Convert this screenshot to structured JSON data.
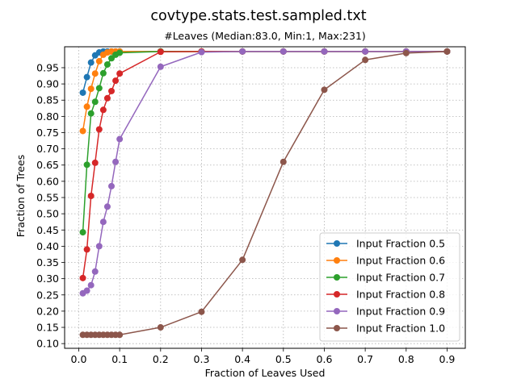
{
  "chart_data": {
    "type": "line",
    "title": "covtype.stats.test.sampled.txt",
    "subtitle": "#Leaves (Median:83.0, Min:1, Max:231)",
    "xlabel": "Fraction of Leaves Used",
    "ylabel": "Fraction of Trees",
    "xlim": [
      -0.0345,
      0.9445
    ],
    "ylim": [
      0.0855,
      1.0145
    ],
    "x_ticks": [
      0.0,
      0.1,
      0.2,
      0.3,
      0.4,
      0.5,
      0.6,
      0.7,
      0.8,
      0.9
    ],
    "x_tick_labels": [
      "0.0",
      "0.1",
      "0.2",
      "0.3",
      "0.4",
      "0.5",
      "0.6",
      "0.7",
      "0.8",
      "0.9"
    ],
    "y_ticks": [
      0.1,
      0.15,
      0.2,
      0.25,
      0.3,
      0.35,
      0.4,
      0.45,
      0.5,
      0.55,
      0.6,
      0.65,
      0.7,
      0.75,
      0.8,
      0.85,
      0.9,
      0.95
    ],
    "y_tick_labels": [
      "0.10",
      "0.15",
      "0.20",
      "0.25",
      "0.30",
      "0.35",
      "0.40",
      "0.45",
      "0.50",
      "0.55",
      "0.60",
      "0.65",
      "0.70",
      "0.75",
      "0.80",
      "0.85",
      "0.90",
      "0.95"
    ],
    "grid": true,
    "legend_position": "lower-right",
    "series": [
      {
        "name": "Input Fraction 0.5",
        "color": "#1f77b4",
        "x": [
          0.01,
          0.02,
          0.03,
          0.04,
          0.05,
          0.06,
          0.07,
          0.08,
          0.09,
          0.1,
          0.2,
          0.3,
          0.4,
          0.5,
          0.6,
          0.7,
          0.8,
          0.9
        ],
        "y": [
          0.873,
          0.921,
          0.966,
          0.988,
          0.997,
          1.0,
          1.0,
          1.0,
          1.0,
          1.0,
          1.0,
          1.0,
          1.0,
          1.0,
          1.0,
          1.0,
          1.0,
          1.0
        ]
      },
      {
        "name": "Input Fraction 0.6",
        "color": "#ff7f0e",
        "x": [
          0.01,
          0.02,
          0.03,
          0.04,
          0.05,
          0.06,
          0.07,
          0.08,
          0.09,
          0.1,
          0.2,
          0.3,
          0.4,
          0.5,
          0.6,
          0.7,
          0.8,
          0.9
        ],
        "y": [
          0.755,
          0.83,
          0.885,
          0.932,
          0.97,
          0.99,
          0.997,
          1.0,
          1.0,
          1.0,
          1.0,
          1.0,
          1.0,
          1.0,
          1.0,
          1.0,
          1.0,
          1.0
        ]
      },
      {
        "name": "Input Fraction 0.7",
        "color": "#2ca02c",
        "x": [
          0.01,
          0.02,
          0.03,
          0.04,
          0.05,
          0.06,
          0.07,
          0.08,
          0.09,
          0.1,
          0.2,
          0.3,
          0.4,
          0.5,
          0.6,
          0.7,
          0.8,
          0.9
        ],
        "y": [
          0.443,
          0.651,
          0.809,
          0.845,
          0.887,
          0.933,
          0.96,
          0.979,
          0.99,
          0.996,
          1.0,
          1.0,
          1.0,
          1.0,
          1.0,
          1.0,
          1.0,
          1.0
        ]
      },
      {
        "name": "Input Fraction 0.8",
        "color": "#d62728",
        "x": [
          0.01,
          0.02,
          0.03,
          0.04,
          0.05,
          0.06,
          0.07,
          0.08,
          0.09,
          0.1,
          0.2,
          0.3,
          0.4,
          0.5,
          0.6,
          0.7,
          0.8,
          0.9
        ],
        "y": [
          0.302,
          0.39,
          0.555,
          0.657,
          0.76,
          0.82,
          0.856,
          0.878,
          0.91,
          0.932,
          0.999,
          1.0,
          1.0,
          1.0,
          1.0,
          1.0,
          1.0,
          1.0
        ]
      },
      {
        "name": "Input Fraction 0.9",
        "color": "#9467bd",
        "x": [
          0.01,
          0.02,
          0.03,
          0.04,
          0.05,
          0.06,
          0.07,
          0.08,
          0.09,
          0.1,
          0.2,
          0.3,
          0.4,
          0.5,
          0.6,
          0.7,
          0.8,
          0.9
        ],
        "y": [
          0.255,
          0.263,
          0.28,
          0.322,
          0.4,
          0.475,
          0.522,
          0.585,
          0.66,
          0.73,
          0.953,
          0.998,
          1.0,
          1.0,
          1.0,
          1.0,
          1.0,
          1.0
        ]
      },
      {
        "name": "Input Fraction 1.0",
        "color": "#8c564b",
        "x": [
          0.01,
          0.02,
          0.03,
          0.04,
          0.05,
          0.06,
          0.07,
          0.08,
          0.09,
          0.1,
          0.2,
          0.3,
          0.4,
          0.5,
          0.6,
          0.7,
          0.8,
          0.9
        ],
        "y": [
          0.127,
          0.127,
          0.127,
          0.127,
          0.127,
          0.127,
          0.127,
          0.127,
          0.127,
          0.127,
          0.15,
          0.198,
          0.358,
          0.66,
          0.882,
          0.974,
          0.995,
          1.0
        ]
      }
    ]
  }
}
